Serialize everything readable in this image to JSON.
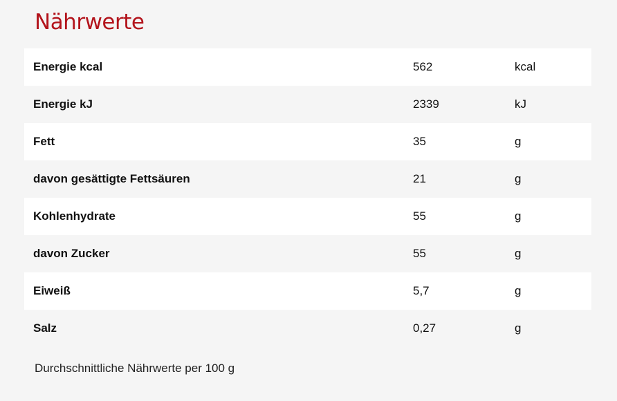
{
  "title": "Nährwerte",
  "rows": [
    {
      "name": "Energie kcal",
      "value": "562",
      "unit": "kcal"
    },
    {
      "name": "Energie kJ",
      "value": "2339",
      "unit": "kJ"
    },
    {
      "name": "Fett",
      "value": "35",
      "unit": "g"
    },
    {
      "name": "davon gesättigte Fettsäuren",
      "value": "21",
      "unit": "g"
    },
    {
      "name": "Kohlenhydrate",
      "value": "55",
      "unit": "g"
    },
    {
      "name": "davon Zucker",
      "value": "55",
      "unit": "g"
    },
    {
      "name": "Eiweiß",
      "value": "5,7",
      "unit": "g"
    },
    {
      "name": "Salz",
      "value": "0,27",
      "unit": "g"
    }
  ],
  "footnote": "Durchschnittliche Nährwerte per 100 g",
  "colors": {
    "title": "#b3141c",
    "background": "#f5f5f5",
    "row_alt": "#ffffff"
  }
}
